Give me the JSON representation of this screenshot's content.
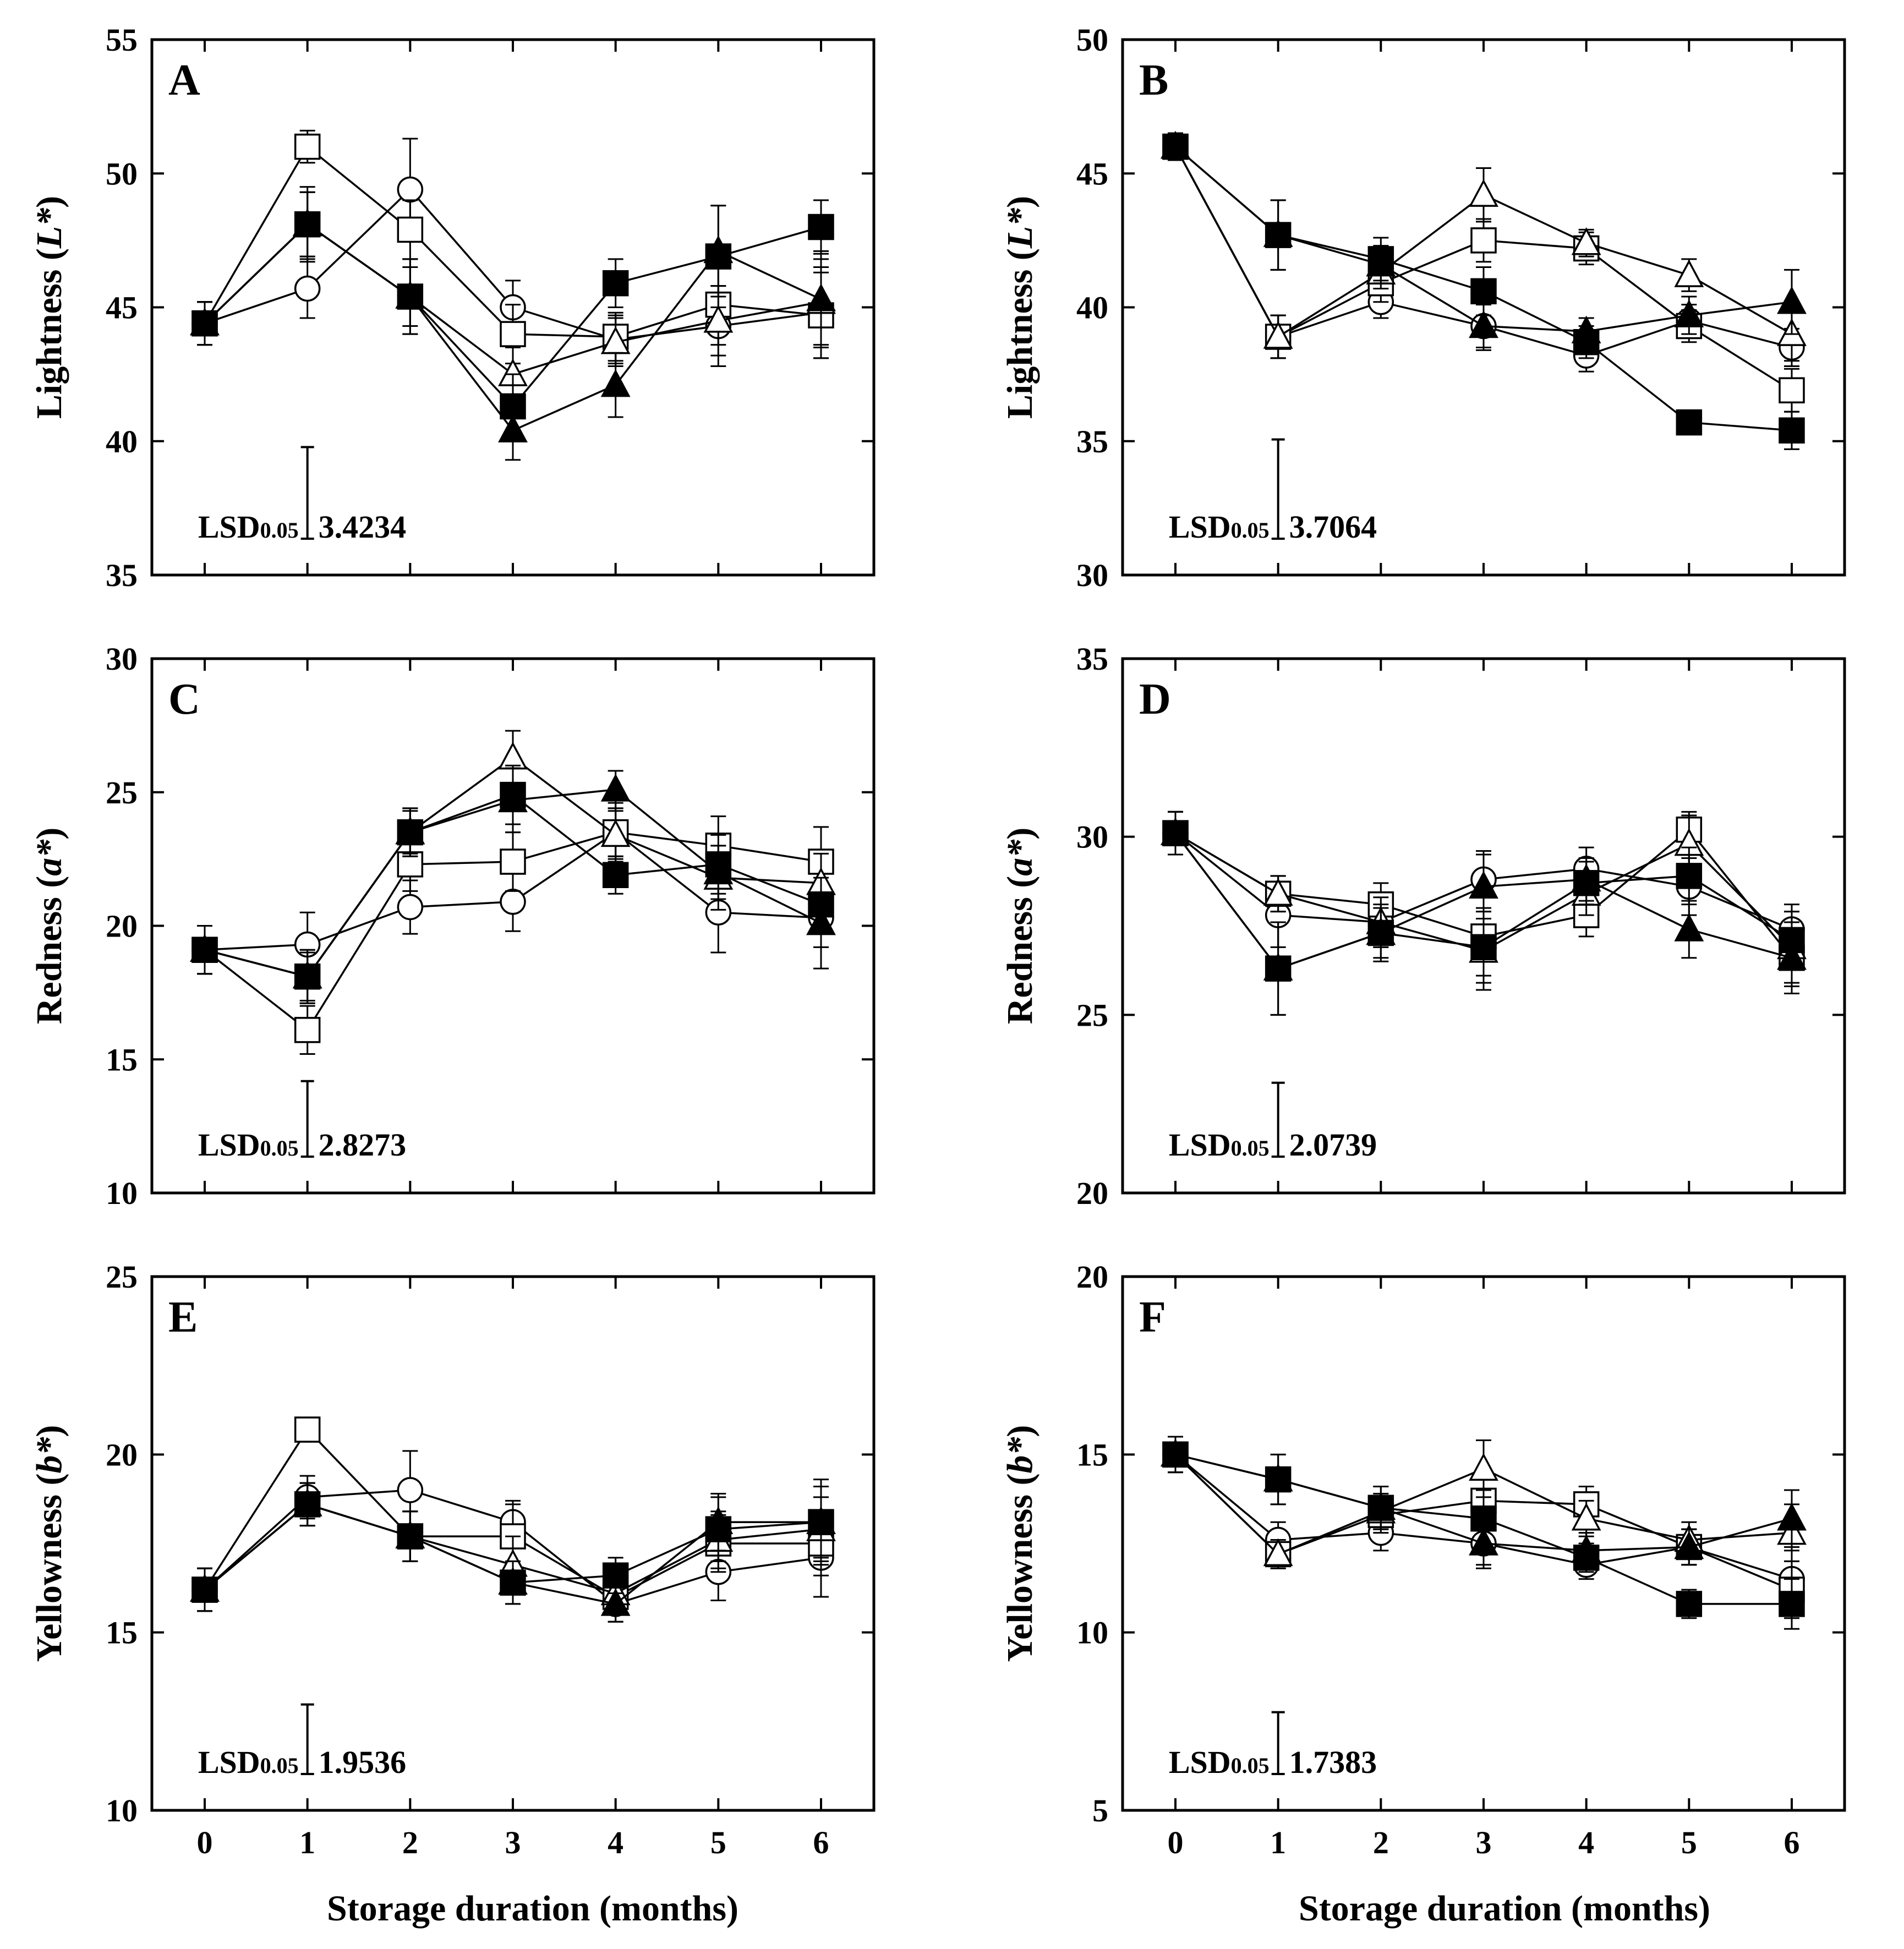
{
  "figure_xlabel": "Storage duration (months)",
  "chart_data": [
    {
      "id": "A",
      "panel_label": "A",
      "type": "line",
      "ylabel_main": "Lightness (",
      "ylabel_var": "L*",
      "ylabel_end": ")",
      "ylim": [
        35,
        55
      ],
      "yticks": [
        "35",
        "40",
        "45",
        "50",
        "55"
      ],
      "x": [
        0,
        1,
        2,
        3,
        4,
        5,
        6
      ],
      "xticks": [
        "0",
        "1",
        "2",
        "3",
        "4",
        "5",
        "6"
      ],
      "lsd_prefix": "LSD",
      "lsd_sub": "0.05",
      "lsd_value": "3.4234",
      "lsd": 3.4234,
      "series": [
        {
          "name": "open-circle",
          "marker": "circle",
          "filled": false,
          "values": [
            44.4,
            45.7,
            49.4,
            45.0,
            43.8,
            44.3,
            44.8
          ],
          "errors": [
            0.8,
            1.1,
            1.9,
            1.0,
            0.9,
            1.5,
            1.7
          ]
        },
        {
          "name": "open-square",
          "marker": "square",
          "filled": false,
          "values": [
            44.4,
            51.0,
            47.9,
            44.0,
            43.9,
            45.1,
            44.7
          ],
          "errors": [
            0.8,
            0.6,
            1.1,
            1.1,
            0.9,
            1.5,
            1.6
          ]
        },
        {
          "name": "open-triangle",
          "marker": "triangle",
          "filled": false,
          "values": [
            44.4,
            48.1,
            45.4,
            42.5,
            43.7,
            44.5,
            45.2
          ],
          "errors": [
            0.8,
            1.2,
            1.1,
            1.0,
            0.9,
            1.3,
            1.6
          ]
        },
        {
          "name": "filled-square",
          "marker": "square",
          "filled": true,
          "values": [
            44.4,
            48.1,
            45.4,
            41.3,
            45.9,
            46.9,
            48.0
          ],
          "errors": [
            0.8,
            1.4,
            1.4,
            1.2,
            0.9,
            1.9,
            1.0
          ]
        },
        {
          "name": "filled-triangle",
          "marker": "triangle",
          "filled": true,
          "values": [
            44.4,
            48.1,
            45.4,
            40.4,
            42.1,
            47.1,
            45.3
          ],
          "errors": [
            0.8,
            1.2,
            1.4,
            1.1,
            1.2,
            1.7,
            1.8
          ]
        }
      ]
    },
    {
      "id": "B",
      "panel_label": "B",
      "type": "line",
      "ylabel_main": "Lightness (",
      "ylabel_var": "L*",
      "ylabel_end": ")",
      "ylim": [
        30,
        50
      ],
      "yticks": [
        "30",
        "35",
        "40",
        "45",
        "50"
      ],
      "x": [
        0,
        1,
        2,
        3,
        4,
        5,
        6
      ],
      "xticks": [
        "0",
        "1",
        "2",
        "3",
        "4",
        "5",
        "6"
      ],
      "lsd_prefix": "LSD",
      "lsd_sub": "0.05",
      "lsd_value": "3.7064",
      "lsd": 3.7064,
      "series": [
        {
          "name": "open-circle",
          "marker": "circle",
          "filled": false,
          "values": [
            46.0,
            38.9,
            40.2,
            39.3,
            38.2,
            39.5,
            38.5
          ],
          "errors": [
            0.5,
            0.8,
            0.6,
            0.8,
            0.6,
            0.6,
            0.7
          ]
        },
        {
          "name": "open-square",
          "marker": "square",
          "filled": false,
          "values": [
            46.0,
            38.9,
            40.9,
            42.5,
            42.2,
            39.3,
            36.9
          ],
          "errors": [
            0.5,
            0.8,
            0.7,
            0.8,
            0.6,
            0.6,
            0.8
          ]
        },
        {
          "name": "open-triangle",
          "marker": "triangle",
          "filled": false,
          "values": [
            46.0,
            38.9,
            41.3,
            44.2,
            42.4,
            41.2,
            39.0
          ],
          "errors": [
            0.5,
            0.8,
            0.6,
            1.0,
            0.5,
            0.6,
            1.0
          ]
        },
        {
          "name": "filled-square",
          "marker": "square",
          "filled": true,
          "values": [
            46.0,
            42.7,
            41.8,
            40.6,
            38.7,
            35.7,
            35.4
          ],
          "errors": [
            0.5,
            1.3,
            0.8,
            0.9,
            0.6,
            0.4,
            0.7
          ]
        },
        {
          "name": "filled-triangle",
          "marker": "triangle",
          "filled": true,
          "values": [
            46.0,
            42.7,
            41.6,
            39.3,
            39.1,
            39.7,
            40.2
          ],
          "errors": [
            0.5,
            1.3,
            0.7,
            0.9,
            0.5,
            0.7,
            1.2
          ]
        }
      ]
    },
    {
      "id": "C",
      "panel_label": "C",
      "type": "line",
      "ylabel_main": "Redness (",
      "ylabel_var": "a*",
      "ylabel_end": ")",
      "ylim": [
        10,
        30
      ],
      "yticks": [
        "10",
        "15",
        "20",
        "25",
        "30"
      ],
      "x": [
        0,
        1,
        2,
        3,
        4,
        5,
        6
      ],
      "xticks": [
        "0",
        "1",
        "2",
        "3",
        "4",
        "5",
        "6"
      ],
      "lsd_prefix": "LSD",
      "lsd_sub": "0.05",
      "lsd_value": "2.8273",
      "lsd": 2.8273,
      "series": [
        {
          "name": "open-circle",
          "marker": "circle",
          "filled": false,
          "values": [
            19.1,
            19.3,
            20.7,
            20.9,
            23.5,
            20.5,
            20.3
          ],
          "errors": [
            0.9,
            1.2,
            1.0,
            1.1,
            1.1,
            1.5,
            1.9
          ]
        },
        {
          "name": "open-square",
          "marker": "square",
          "filled": false,
          "values": [
            19.1,
            16.1,
            22.3,
            22.4,
            23.5,
            23.0,
            22.4
          ],
          "errors": [
            0.9,
            0.9,
            1.0,
            1.1,
            0.9,
            1.1,
            1.3
          ]
        },
        {
          "name": "open-triangle",
          "marker": "triangle",
          "filled": false,
          "values": [
            19.1,
            18.1,
            23.5,
            26.3,
            23.4,
            21.8,
            21.6
          ],
          "errors": [
            0.9,
            1.0,
            0.9,
            1.0,
            0.9,
            1.2,
            1.1
          ]
        },
        {
          "name": "filled-square",
          "marker": "square",
          "filled": true,
          "values": [
            19.1,
            18.1,
            23.5,
            24.9,
            21.9,
            22.3,
            20.8
          ],
          "errors": [
            0.9,
            0.9,
            0.9,
            1.1,
            0.7,
            1.1,
            1.0
          ]
        },
        {
          "name": "filled-triangle",
          "marker": "triangle",
          "filled": true,
          "values": [
            19.1,
            18.1,
            23.5,
            24.7,
            25.1,
            22.0,
            20.1
          ],
          "errors": [
            0.9,
            1.0,
            0.8,
            1.2,
            0.7,
            1.0,
            0.9
          ]
        }
      ]
    },
    {
      "id": "D",
      "panel_label": "D",
      "type": "line",
      "ylabel_main": "Redness (",
      "ylabel_var": "a*",
      "ylabel_end": ")",
      "ylim": [
        20,
        35
      ],
      "yticks": [
        "20",
        "25",
        "30",
        "35"
      ],
      "x": [
        0,
        1,
        2,
        3,
        4,
        5,
        6
      ],
      "xticks": [
        "0",
        "1",
        "2",
        "3",
        "4",
        "5",
        "6"
      ],
      "lsd_prefix": "LSD",
      "lsd_sub": "0.05",
      "lsd_value": "2.0739",
      "lsd": 2.0739,
      "series": [
        {
          "name": "open-circle",
          "marker": "circle",
          "filled": false,
          "values": [
            30.1,
            27.8,
            27.6,
            28.8,
            29.1,
            28.6,
            27.4
          ],
          "errors": [
            0.6,
            0.9,
            0.7,
            0.8,
            0.6,
            0.8,
            0.7
          ]
        },
        {
          "name": "open-square",
          "marker": "square",
          "filled": false,
          "values": [
            30.1,
            28.4,
            28.1,
            27.2,
            27.8,
            30.2,
            26.6
          ],
          "errors": [
            0.6,
            0.5,
            0.6,
            1.1,
            0.6,
            0.5,
            1.0
          ]
        },
        {
          "name": "open-triangle",
          "marker": "triangle",
          "filled": false,
          "values": [
            30.1,
            28.4,
            27.6,
            26.8,
            28.4,
            29.8,
            26.9
          ],
          "errors": [
            0.6,
            0.5,
            0.7,
            1.1,
            0.6,
            0.8,
            1.0
          ]
        },
        {
          "name": "filled-square",
          "marker": "square",
          "filled": true,
          "values": [
            30.1,
            26.3,
            27.3,
            26.9,
            28.7,
            28.9,
            27.1
          ],
          "errors": [
            0.6,
            1.3,
            0.8,
            1.0,
            0.6,
            0.8,
            0.8
          ]
        },
        {
          "name": "filled-triangle",
          "marker": "triangle",
          "filled": true,
          "values": [
            30.1,
            26.3,
            27.3,
            28.6,
            28.8,
            27.4,
            26.6
          ],
          "errors": [
            0.6,
            1.3,
            0.7,
            0.9,
            0.6,
            0.8,
            0.8
          ]
        }
      ]
    },
    {
      "id": "E",
      "panel_label": "E",
      "type": "line",
      "ylabel_main": "Yellowness (",
      "ylabel_var": "b*",
      "ylabel_end": ")",
      "ylim": [
        10,
        25
      ],
      "yticks": [
        "10",
        "15",
        "20",
        "25"
      ],
      "x": [
        0,
        1,
        2,
        3,
        4,
        5,
        6
      ],
      "xticks": [
        "0",
        "1",
        "2",
        "3",
        "4",
        "5",
        "6"
      ],
      "lsd_prefix": "LSD",
      "lsd_sub": "0.05",
      "lsd_value": "1.9536",
      "lsd": 1.9536,
      "series": [
        {
          "name": "open-circle",
          "marker": "circle",
          "filled": false,
          "values": [
            16.2,
            18.8,
            19.0,
            18.1,
            15.8,
            16.7,
            17.1
          ],
          "errors": [
            0.6,
            0.6,
            1.1,
            0.6,
            0.5,
            0.8,
            1.1
          ]
        },
        {
          "name": "open-square",
          "marker": "square",
          "filled": false,
          "values": [
            16.2,
            20.7,
            17.7,
            17.7,
            16.0,
            17.5,
            17.5
          ],
          "errors": [
            0.6,
            0.3,
            0.7,
            0.9,
            0.5,
            0.8,
            0.9
          ]
        },
        {
          "name": "open-triangle",
          "marker": "triangle",
          "filled": false,
          "values": [
            16.2,
            18.6,
            17.7,
            16.9,
            16.1,
            17.6,
            17.9
          ],
          "errors": [
            0.6,
            0.6,
            0.7,
            0.8,
            0.5,
            0.8,
            0.9
          ]
        },
        {
          "name": "filled-square",
          "marker": "square",
          "filled": true,
          "values": [
            16.2,
            18.6,
            17.7,
            16.4,
            16.6,
            17.9,
            18.1
          ],
          "errors": [
            0.6,
            0.6,
            0.7,
            0.6,
            0.5,
            0.9,
            1.2
          ]
        },
        {
          "name": "filled-triangle",
          "marker": "triangle",
          "filled": true,
          "values": [
            16.2,
            18.6,
            17.7,
            16.4,
            15.8,
            18.1,
            18.1
          ],
          "errors": [
            0.6,
            0.6,
            0.7,
            0.6,
            0.5,
            0.8,
            1.0
          ]
        }
      ]
    },
    {
      "id": "F",
      "panel_label": "F",
      "type": "line",
      "ylabel_main": "Yellowness (",
      "ylabel_var": "b*",
      "ylabel_end": ")",
      "ylim": [
        5,
        20
      ],
      "yticks": [
        "5",
        "10",
        "15",
        "20"
      ],
      "x": [
        0,
        1,
        2,
        3,
        4,
        5,
        6
      ],
      "xticks": [
        "0",
        "1",
        "2",
        "3",
        "4",
        "5",
        "6"
      ],
      "lsd_prefix": "LSD",
      "lsd_sub": "0.05",
      "lsd_value": "1.7383",
      "lsd": 1.7383,
      "series": [
        {
          "name": "open-circle",
          "marker": "circle",
          "filled": false,
          "values": [
            15.0,
            12.6,
            12.8,
            12.5,
            11.9,
            12.4,
            11.5
          ],
          "errors": [
            0.5,
            0.5,
            0.5,
            0.6,
            0.4,
            0.5,
            0.8
          ]
        },
        {
          "name": "open-square",
          "marker": "square",
          "filled": false,
          "values": [
            15.0,
            12.2,
            13.3,
            13.7,
            13.6,
            12.4,
            11.2
          ],
          "errors": [
            0.5,
            0.4,
            0.5,
            0.7,
            0.5,
            0.5,
            0.8
          ]
        },
        {
          "name": "open-triangle",
          "marker": "triangle",
          "filled": false,
          "values": [
            15.0,
            12.2,
            13.4,
            14.6,
            13.2,
            12.6,
            12.8
          ],
          "errors": [
            0.5,
            0.4,
            0.5,
            0.8,
            0.5,
            0.5,
            0.8
          ]
        },
        {
          "name": "filled-square",
          "marker": "square",
          "filled": true,
          "values": [
            15.0,
            14.3,
            13.5,
            13.2,
            12.1,
            10.8,
            10.8
          ],
          "errors": [
            0.5,
            0.7,
            0.6,
            0.8,
            0.4,
            0.4,
            0.7
          ]
        },
        {
          "name": "filled-triangle",
          "marker": "triangle",
          "filled": true,
          "values": [
            15.0,
            14.3,
            13.5,
            12.5,
            12.3,
            12.4,
            13.2
          ],
          "errors": [
            0.5,
            0.7,
            0.6,
            0.7,
            0.5,
            0.5,
            0.8
          ]
        }
      ]
    }
  ]
}
